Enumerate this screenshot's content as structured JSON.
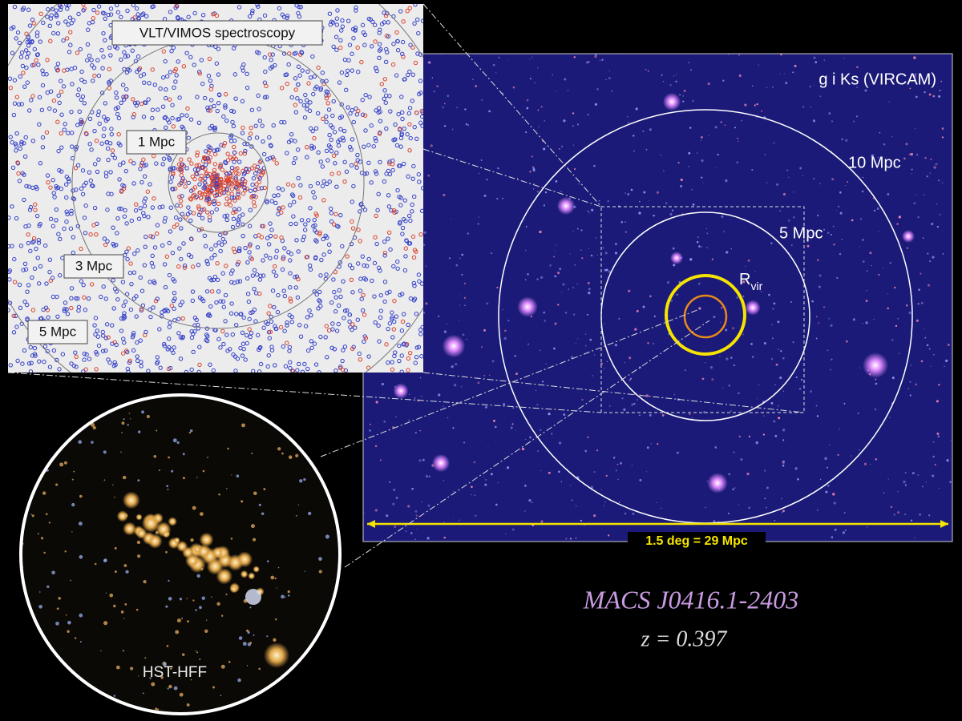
{
  "spectroscopy_panel": {
    "title": "VLT/VIMOS spectroscopy",
    "rings": [
      "1 Mpc",
      "3 Mpc",
      "5 Mpc"
    ]
  },
  "wide_field_panel": {
    "filters": "g i Ks (VIRCAM)",
    "rings": [
      "10 Mpc",
      "5 Mpc"
    ],
    "rvir_label": {
      "main": "R",
      "sub": "vir"
    },
    "scale_bar": "1.5 deg = 29 Mpc"
  },
  "hst_panel": {
    "label": "HST-HFF"
  },
  "caption": {
    "cluster": "MACS J0416.1-2403",
    "redshift": "z = 0.397"
  }
}
